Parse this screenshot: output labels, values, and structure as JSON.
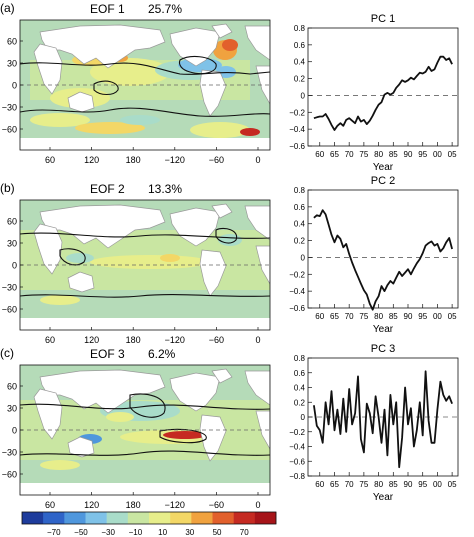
{
  "colors": {
    "land": "#ffffff",
    "coast": "#9a9a9a",
    "contour": "#111111",
    "line": "#111111",
    "zero": "#666666",
    "scale": [
      "#1e3c9c",
      "#2f64c8",
      "#4f97dd",
      "#7fc2e8",
      "#a9dcc9",
      "#c9e6a2",
      "#e7ee8b",
      "#f3d766",
      "#f0a23f",
      "#e2602c",
      "#c52a22",
      "#a61419"
    ]
  },
  "chart_data": [
    {
      "type": "map",
      "panel": "(a)",
      "title": "EOF 1",
      "variance": "25.7%",
      "lon_ticks": [
        "60",
        "120",
        "180",
        "−120",
        "−60",
        "0"
      ],
      "lat_ticks": [
        "60",
        "30",
        "0",
        "−30",
        "−60"
      ]
    },
    {
      "type": "line",
      "panel": "(a)",
      "title": "PC 1",
      "xlabel": "Year",
      "ylabel": "",
      "xlim": [
        1956,
        2007
      ],
      "ylim": [
        -0.6,
        0.8
      ],
      "x_ticks": [
        "60",
        "65",
        "70",
        "75",
        "80",
        "85",
        "90",
        "95",
        "00",
        "05"
      ],
      "y_ticks": [
        "0.8",
        "0.6",
        "0.4",
        "0.2",
        "0",
        "−0.2",
        "−0.4",
        "−0.6"
      ],
      "x": [
        1958,
        1959,
        1960,
        1961,
        1962,
        1963,
        1964,
        1965,
        1966,
        1967,
        1968,
        1969,
        1970,
        1971,
        1972,
        1973,
        1974,
        1975,
        1976,
        1977,
        1978,
        1979,
        1980,
        1981,
        1982,
        1983,
        1984,
        1985,
        1986,
        1987,
        1988,
        1989,
        1990,
        1991,
        1992,
        1993,
        1994,
        1995,
        1996,
        1997,
        1998,
        1999,
        2000,
        2001,
        2002,
        2003,
        2004,
        2005
      ],
      "values": [
        -0.27,
        -0.26,
        -0.25,
        -0.25,
        -0.22,
        -0.28,
        -0.35,
        -0.41,
        -0.36,
        -0.33,
        -0.36,
        -0.29,
        -0.27,
        -0.3,
        -0.33,
        -0.25,
        -0.31,
        -0.29,
        -0.34,
        -0.3,
        -0.24,
        -0.17,
        -0.11,
        -0.08,
        0.01,
        0.03,
        0.01,
        0.03,
        0.09,
        0.13,
        0.18,
        0.16,
        0.18,
        0.21,
        0.19,
        0.23,
        0.27,
        0.26,
        0.28,
        0.34,
        0.29,
        0.31,
        0.39,
        0.46,
        0.46,
        0.42,
        0.44,
        0.37
      ]
    },
    {
      "type": "map",
      "panel": "(b)",
      "title": "EOF 2",
      "variance": "13.3%",
      "lon_ticks": [
        "60",
        "120",
        "180",
        "−120",
        "−60",
        "0"
      ],
      "lat_ticks": [
        "60",
        "30",
        "0",
        "−30",
        "−60"
      ]
    },
    {
      "type": "line",
      "panel": "(b)",
      "title": "PC 2",
      "xlabel": "Year",
      "ylabel": "",
      "xlim": [
        1956,
        2007
      ],
      "ylim": [
        -0.6,
        0.8
      ],
      "x_ticks": [
        "60",
        "65",
        "70",
        "75",
        "80",
        "85",
        "90",
        "95",
        "00",
        "05"
      ],
      "y_ticks": [
        "0.8",
        "0.6",
        "0.4",
        "0.2",
        "0",
        "−0.2",
        "−0.4",
        "−0.6"
      ],
      "x": [
        1958,
        1959,
        1960,
        1961,
        1962,
        1963,
        1964,
        1965,
        1966,
        1967,
        1968,
        1969,
        1970,
        1971,
        1972,
        1973,
        1974,
        1975,
        1976,
        1977,
        1978,
        1979,
        1980,
        1981,
        1982,
        1983,
        1984,
        1985,
        1986,
        1987,
        1988,
        1989,
        1990,
        1991,
        1992,
        1993,
        1994,
        1995,
        1996,
        1997,
        1998,
        1999,
        2000,
        2001,
        2002,
        2003,
        2004,
        2005
      ],
      "values": [
        0.47,
        0.5,
        0.49,
        0.56,
        0.51,
        0.39,
        0.27,
        0.18,
        0.26,
        0.22,
        0.12,
        0.16,
        0.04,
        -0.06,
        -0.15,
        -0.23,
        -0.31,
        -0.39,
        -0.44,
        -0.55,
        -0.62,
        -0.52,
        -0.46,
        -0.34,
        -0.4,
        -0.33,
        -0.28,
        -0.31,
        -0.24,
        -0.17,
        -0.22,
        -0.18,
        -0.14,
        -0.2,
        -0.13,
        -0.07,
        -0.02,
        0.05,
        0.14,
        0.17,
        0.19,
        0.14,
        0.16,
        0.07,
        0.11,
        0.18,
        0.23,
        0.1
      ]
    },
    {
      "type": "map",
      "panel": "(c)",
      "title": "EOF 3",
      "variance": "6.2%",
      "lon_ticks": [
        "60",
        "120",
        "180",
        "−120",
        "−60",
        "0"
      ],
      "lat_ticks": [
        "60",
        "30",
        "0",
        "−30",
        "−60"
      ]
    },
    {
      "type": "line",
      "panel": "(c)",
      "title": "PC 3",
      "xlabel": "Year",
      "ylabel": "",
      "xlim": [
        1956,
        2007
      ],
      "ylim": [
        -0.8,
        0.8
      ],
      "x_ticks": [
        "60",
        "65",
        "70",
        "75",
        "80",
        "85",
        "90",
        "95",
        "00",
        "05"
      ],
      "y_ticks": [
        "0.8",
        "0.6",
        "0.4",
        "0.2",
        "0",
        "−0.2",
        "−0.4",
        "−0.6",
        "−0.8"
      ],
      "x": [
        1958,
        1959,
        1960,
        1961,
        1962,
        1963,
        1964,
        1965,
        1966,
        1967,
        1968,
        1969,
        1970,
        1971,
        1972,
        1973,
        1974,
        1975,
        1976,
        1977,
        1978,
        1979,
        1980,
        1981,
        1982,
        1983,
        1984,
        1985,
        1986,
        1987,
        1988,
        1989,
        1990,
        1991,
        1992,
        1993,
        1994,
        1995,
        1996,
        1997,
        1998,
        1999,
        2000,
        2001,
        2002,
        2003,
        2004,
        2005
      ],
      "values": [
        0.16,
        -0.12,
        -0.18,
        -0.35,
        0.2,
        -0.1,
        0.35,
        -0.18,
        0.1,
        -0.23,
        0.25,
        -0.2,
        0.38,
        -0.1,
        0.05,
        0.55,
        -0.3,
        -0.48,
        0.18,
        0.05,
        -0.22,
        0.28,
        0.0,
        -0.35,
        0.1,
        -0.52,
        0.3,
        -0.1,
        0.2,
        -0.68,
        -0.28,
        0.4,
        -0.1,
        0.12,
        -0.4,
        -0.18,
        0.2,
        -0.25,
        0.62,
        -0.05,
        -0.35,
        -0.35,
        0.1,
        0.48,
        0.3,
        0.22,
        0.28,
        0.18
      ]
    },
    {
      "type": "colorbar",
      "tick_labels": [
        "−70",
        "−50",
        "−30",
        "−10",
        "10",
        "30",
        "50",
        "70"
      ]
    }
  ]
}
